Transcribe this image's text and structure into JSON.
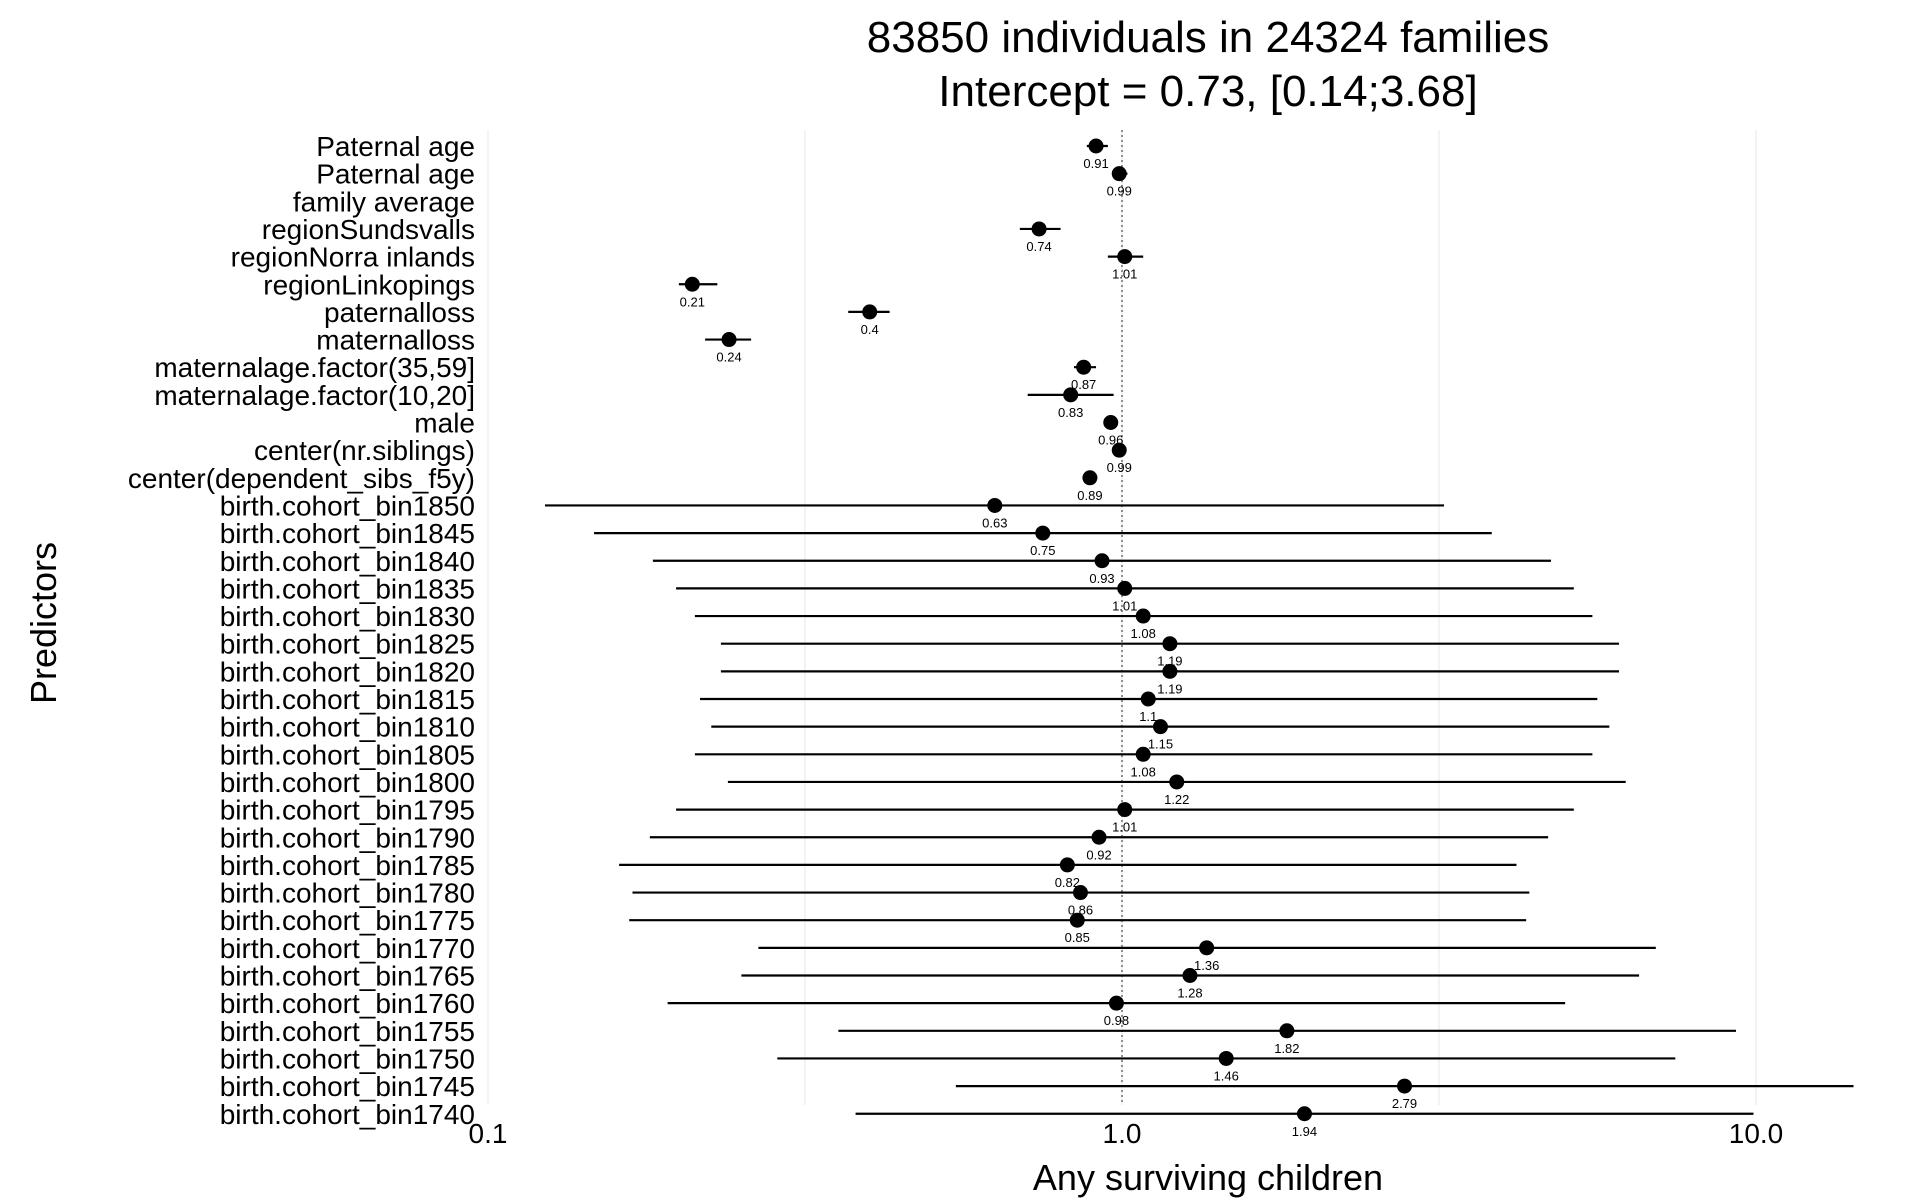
{
  "chart_data": {
    "type": "scatter",
    "subtype": "forest-plot",
    "title": "83850 individuals in 24324 families",
    "subtitle": "Intercept = 0.73, [0.14;3.68]",
    "xlabel": "Any surviving children",
    "ylabel": "Predictors",
    "x_scale": "log10",
    "xlim": [
      0.1,
      15
    ],
    "x_ticks": [
      "0.1",
      "1.0",
      "10.0"
    ],
    "reference_line": 1.0,
    "grid": "vertical major gridlines",
    "legend": "none",
    "point_color": "#000000",
    "rows": [
      {
        "label": "Paternal age",
        "estimate": 0.91,
        "lower": 0.88,
        "upper": 0.95,
        "estimate_label": "0.91"
      },
      {
        "label": "Paternal age",
        "estimate": 0.99,
        "lower": 0.97,
        "upper": 1.02,
        "estimate_label": "0.99"
      },
      {
        "label": "family average",
        "estimate": null,
        "lower": null,
        "upper": null,
        "estimate_label": ""
      },
      {
        "label": "regionSundsvalls",
        "estimate": 0.74,
        "lower": 0.69,
        "upper": 0.8,
        "estimate_label": "0.74"
      },
      {
        "label": "regionNorra inlands",
        "estimate": 1.01,
        "lower": 0.95,
        "upper": 1.08,
        "estimate_label": "1.01"
      },
      {
        "label": "regionLinkopings",
        "estimate": 0.21,
        "lower": 0.2,
        "upper": 0.23,
        "estimate_label": "0.21"
      },
      {
        "label": "paternalloss",
        "estimate": 0.4,
        "lower": 0.37,
        "upper": 0.43,
        "estimate_label": "0.4"
      },
      {
        "label": "maternalloss",
        "estimate": 0.24,
        "lower": 0.22,
        "upper": 0.26,
        "estimate_label": "0.24"
      },
      {
        "label": "maternalage.factor(35,59]",
        "estimate": 0.87,
        "lower": 0.84,
        "upper": 0.91,
        "estimate_label": "0.87"
      },
      {
        "label": "maternalage.factor(10,20]",
        "estimate": 0.83,
        "lower": 0.71,
        "upper": 0.97,
        "estimate_label": "0.83"
      },
      {
        "label": "male",
        "estimate": 0.96,
        "lower": 0.94,
        "upper": 0.97,
        "estimate_label": "0.96"
      },
      {
        "label": "center(nr.siblings)",
        "estimate": 0.99,
        "lower": 0.98,
        "upper": 1.0,
        "estimate_label": "0.99"
      },
      {
        "label": "center(dependent_sibs_f5y)",
        "estimate": 0.89,
        "lower": 0.88,
        "upper": 0.9,
        "estimate_label": "0.89"
      },
      {
        "label": "birth.cohort_bin1850",
        "estimate": 0.63,
        "lower": 0.123,
        "upper": 3.22,
        "estimate_label": "0.63"
      },
      {
        "label": "birth.cohort_bin1845",
        "estimate": 0.75,
        "lower": 0.147,
        "upper": 3.83,
        "estimate_label": "0.75"
      },
      {
        "label": "birth.cohort_bin1840",
        "estimate": 0.93,
        "lower": 0.182,
        "upper": 4.75,
        "estimate_label": "0.93"
      },
      {
        "label": "birth.cohort_bin1835",
        "estimate": 1.01,
        "lower": 0.198,
        "upper": 5.16,
        "estimate_label": "1.01"
      },
      {
        "label": "birth.cohort_bin1830",
        "estimate": 1.08,
        "lower": 0.212,
        "upper": 5.52,
        "estimate_label": "1.08"
      },
      {
        "label": "birth.cohort_bin1825",
        "estimate": 1.19,
        "lower": 0.233,
        "upper": 6.08,
        "estimate_label": "1.19"
      },
      {
        "label": "birth.cohort_bin1820",
        "estimate": 1.19,
        "lower": 0.233,
        "upper": 6.08,
        "estimate_label": "1.19"
      },
      {
        "label": "birth.cohort_bin1815",
        "estimate": 1.1,
        "lower": 0.216,
        "upper": 5.62,
        "estimate_label": "1.1"
      },
      {
        "label": "birth.cohort_bin1810",
        "estimate": 1.15,
        "lower": 0.225,
        "upper": 5.87,
        "estimate_label": "1.15"
      },
      {
        "label": "birth.cohort_bin1805",
        "estimate": 1.08,
        "lower": 0.212,
        "upper": 5.52,
        "estimate_label": "1.08"
      },
      {
        "label": "birth.cohort_bin1800",
        "estimate": 1.22,
        "lower": 0.239,
        "upper": 6.23,
        "estimate_label": "1.22"
      },
      {
        "label": "birth.cohort_bin1795",
        "estimate": 1.01,
        "lower": 0.198,
        "upper": 5.16,
        "estimate_label": "1.01"
      },
      {
        "label": "birth.cohort_bin1790",
        "estimate": 0.92,
        "lower": 0.18,
        "upper": 4.7,
        "estimate_label": "0.92"
      },
      {
        "label": "birth.cohort_bin1785",
        "estimate": 0.82,
        "lower": 0.161,
        "upper": 4.19,
        "estimate_label": "0.82"
      },
      {
        "label": "birth.cohort_bin1780",
        "estimate": 0.86,
        "lower": 0.169,
        "upper": 4.39,
        "estimate_label": "0.86"
      },
      {
        "label": "birth.cohort_bin1775",
        "estimate": 0.85,
        "lower": 0.167,
        "upper": 4.34,
        "estimate_label": "0.85"
      },
      {
        "label": "birth.cohort_bin1770",
        "estimate": 1.36,
        "lower": 0.267,
        "upper": 6.95,
        "estimate_label": "1.36"
      },
      {
        "label": "birth.cohort_bin1765",
        "estimate": 1.28,
        "lower": 0.251,
        "upper": 6.54,
        "estimate_label": "1.28"
      },
      {
        "label": "birth.cohort_bin1760",
        "estimate": 0.98,
        "lower": 0.192,
        "upper": 5.0,
        "estimate_label": "0.98"
      },
      {
        "label": "birth.cohort_bin1755",
        "estimate": 1.82,
        "lower": 0.357,
        "upper": 9.3,
        "estimate_label": "1.82"
      },
      {
        "label": "birth.cohort_bin1750",
        "estimate": 1.46,
        "lower": 0.286,
        "upper": 7.46,
        "estimate_label": "1.46"
      },
      {
        "label": "birth.cohort_bin1745",
        "estimate": 2.79,
        "lower": 0.547,
        "upper": 14.25,
        "estimate_label": "2.79"
      },
      {
        "label": "birth.cohort_bin1740",
        "estimate": 1.94,
        "lower": 0.38,
        "upper": 9.91,
        "estimate_label": "1.94"
      }
    ]
  }
}
